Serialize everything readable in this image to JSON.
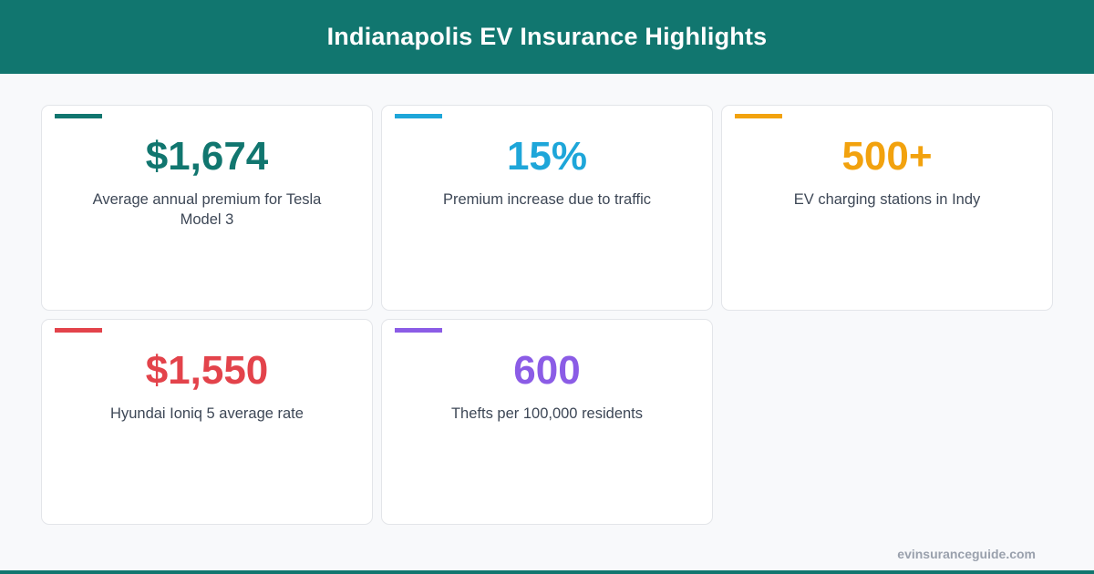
{
  "header": {
    "title": "Indianapolis EV Insurance Highlights"
  },
  "colors": {
    "header_bg": "#11766f",
    "teal": "#11766f",
    "blue": "#1ea6d9",
    "orange": "#f2a20e",
    "red": "#e3434b",
    "purple": "#8b5ce6"
  },
  "cards": [
    {
      "value": "$1,674",
      "label": "Average annual premium for Tesla Model 3",
      "color": "#11766f"
    },
    {
      "value": "15%",
      "label": "Premium increase due to traffic",
      "color": "#1ea6d9"
    },
    {
      "value": "500+",
      "label": "EV charging stations in Indy",
      "color": "#f2a20e"
    },
    {
      "value": "$1,550",
      "label": "Hyundai Ioniq 5 average rate",
      "color": "#e3434b"
    },
    {
      "value": "600",
      "label": "Thefts per 100,000 residents",
      "color": "#8b5ce6"
    }
  ],
  "footer": {
    "site": "evinsuranceguide.com"
  }
}
